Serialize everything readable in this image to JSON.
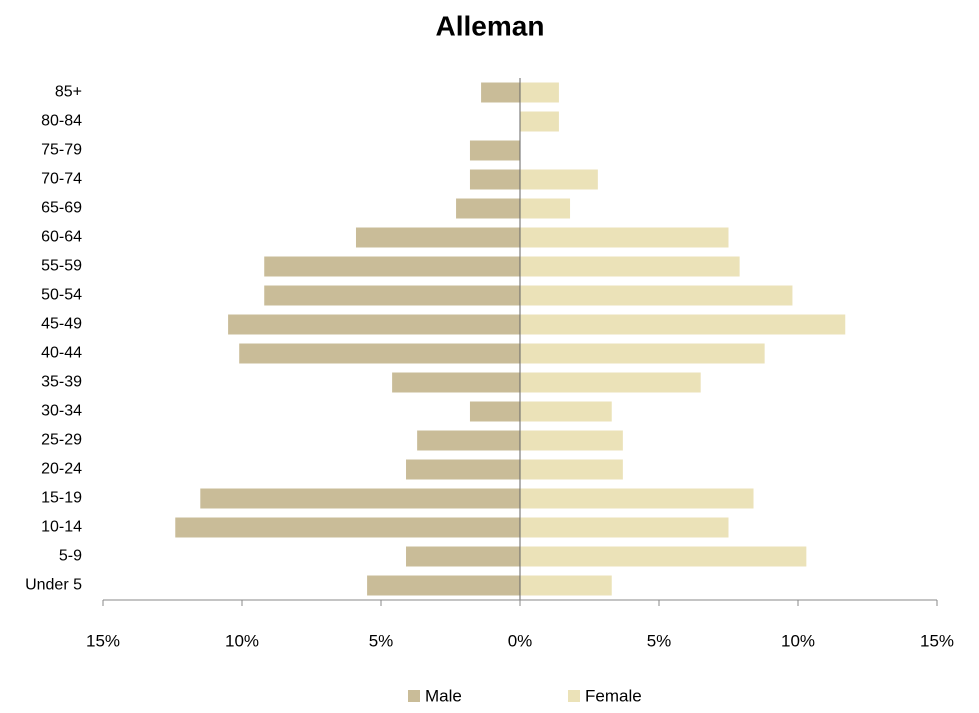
{
  "chart_data": {
    "type": "pyramid",
    "title": "Alleman",
    "categories": [
      "Under 5",
      "5-9",
      "10-14",
      "15-19",
      "20-24",
      "25-29",
      "30-34",
      "35-39",
      "40-44",
      "45-49",
      "50-54",
      "55-59",
      "60-64",
      "65-69",
      "70-74",
      "75-79",
      "80-84",
      "85+"
    ],
    "series": [
      {
        "name": "Male",
        "color": "#c9bc98",
        "values": [
          -5.5,
          -4.1,
          -12.4,
          -11.5,
          -4.1,
          -3.7,
          -1.8,
          -4.6,
          -10.1,
          -10.5,
          -9.2,
          -9.2,
          -5.9,
          -2.3,
          -1.8,
          -1.8,
          0,
          -1.4
        ]
      },
      {
        "name": "Female",
        "color": "#ebe2b8",
        "values": [
          3.3,
          10.3,
          7.5,
          8.4,
          3.7,
          3.7,
          3.3,
          6.5,
          8.8,
          11.7,
          9.8,
          7.9,
          7.5,
          1.8,
          2.8,
          0,
          1.4,
          1.4
        ]
      }
    ],
    "xlim": [
      -15,
      15
    ],
    "xticks": [
      {
        "value": -15,
        "label": "15%"
      },
      {
        "value": -10,
        "label": "10%"
      },
      {
        "value": -5,
        "label": "5%"
      },
      {
        "value": 0,
        "label": "0%"
      },
      {
        "value": 5,
        "label": "5%"
      },
      {
        "value": 10,
        "label": "10%"
      },
      {
        "value": 15,
        "label": "15%"
      }
    ],
    "legend": "bottom"
  }
}
